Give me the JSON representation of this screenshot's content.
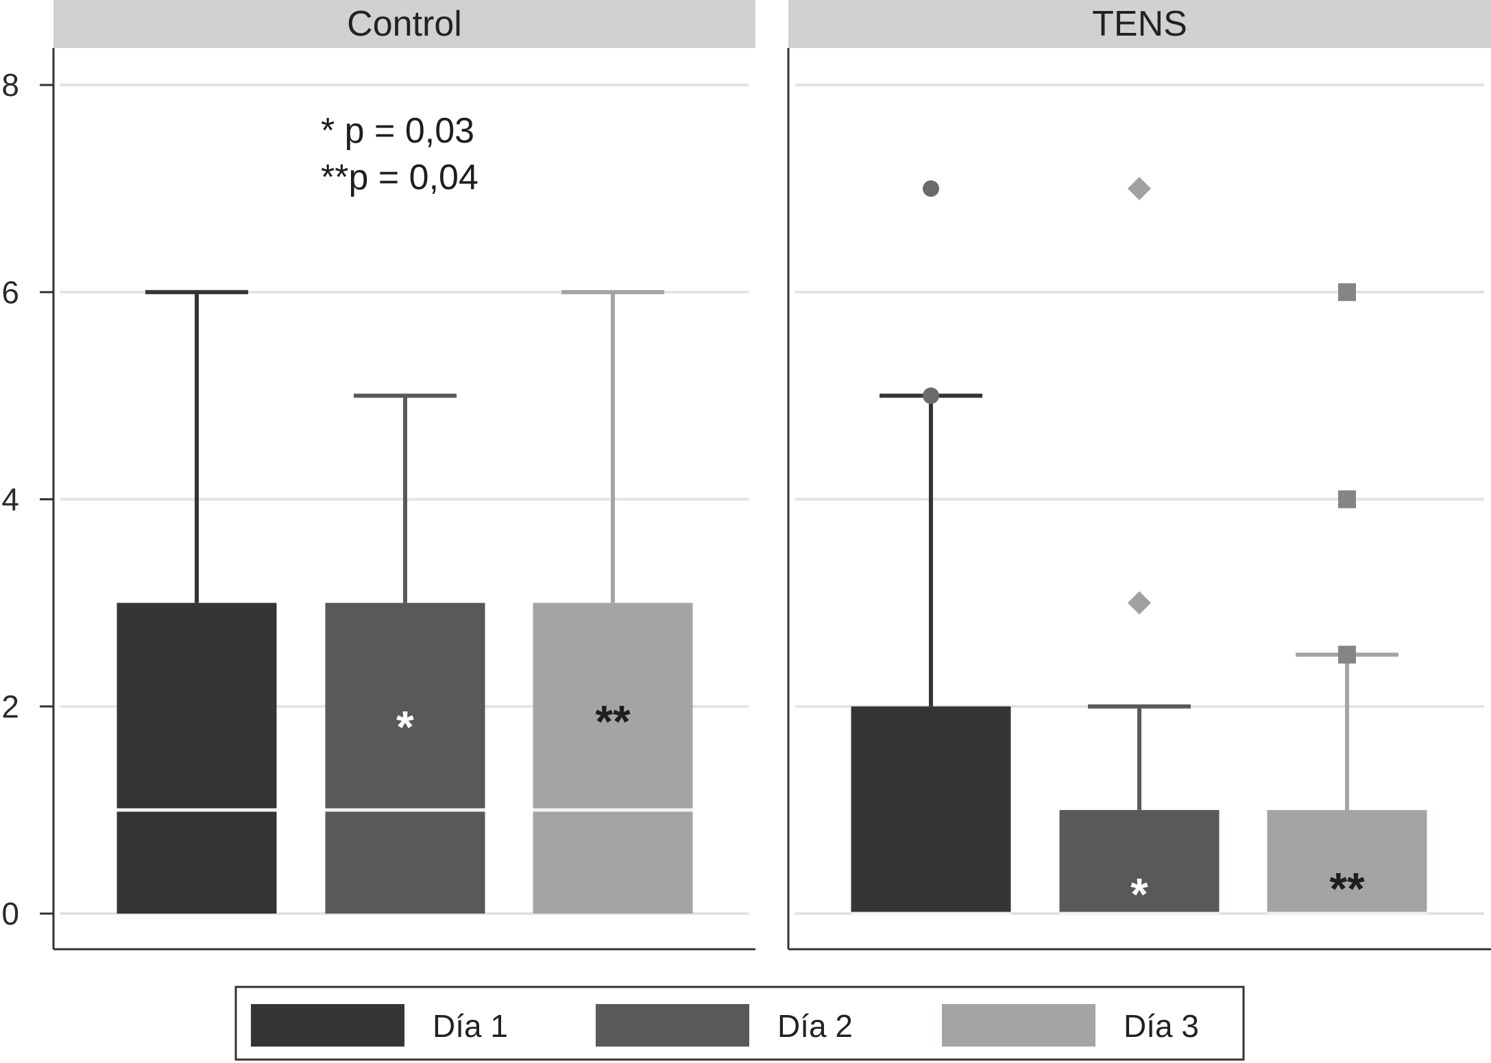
{
  "chart_data": {
    "type": "box",
    "ylim": [
      0,
      8
    ],
    "yticks": [
      "0",
      "2",
      "4",
      "6",
      "8"
    ],
    "grid": true,
    "legend_position": "bottom",
    "series": [
      {
        "name": "Día 1",
        "color": "#363435"
      },
      {
        "name": "Día 2",
        "color": "#58595b"
      },
      {
        "name": "Día 3",
        "color": "#a3a4a6"
      }
    ],
    "panels": [
      {
        "title": "Control",
        "annotations": [
          "* p = 0,03",
          "**p = 0,04"
        ],
        "boxes": [
          {
            "series": 0,
            "q1": 0,
            "median": 1,
            "q3": 3,
            "whisker_low": 0,
            "whisker_high": 6,
            "outliers": [],
            "marker": "",
            "label": ""
          },
          {
            "series": 1,
            "q1": 0,
            "median": 1,
            "q3": 3,
            "whisker_low": 0,
            "whisker_high": 5,
            "outliers": [],
            "marker": "",
            "label": "*"
          },
          {
            "series": 2,
            "q1": 0,
            "median": 1,
            "q3": 3,
            "whisker_low": 0,
            "whisker_high": 6,
            "outliers": [],
            "marker": "",
            "label": "**"
          }
        ]
      },
      {
        "title": "TENS",
        "annotations": [],
        "boxes": [
          {
            "series": 0,
            "q1": 0,
            "median": 0,
            "q3": 2,
            "whisker_low": 0,
            "whisker_high": 5,
            "outliers": [
              5,
              7
            ],
            "marker": "circle",
            "label": ""
          },
          {
            "series": 1,
            "q1": 0,
            "median": 0,
            "q3": 1,
            "whisker_low": 0,
            "whisker_high": 2,
            "outliers": [
              3,
              7
            ],
            "marker": "diamond",
            "label": "*"
          },
          {
            "series": 2,
            "q1": 0,
            "median": 0,
            "q3": 1,
            "whisker_low": 0,
            "whisker_high": 2.5,
            "outliers": [
              2.5,
              4,
              6
            ],
            "marker": "square",
            "label": "**"
          }
        ]
      }
    ]
  }
}
